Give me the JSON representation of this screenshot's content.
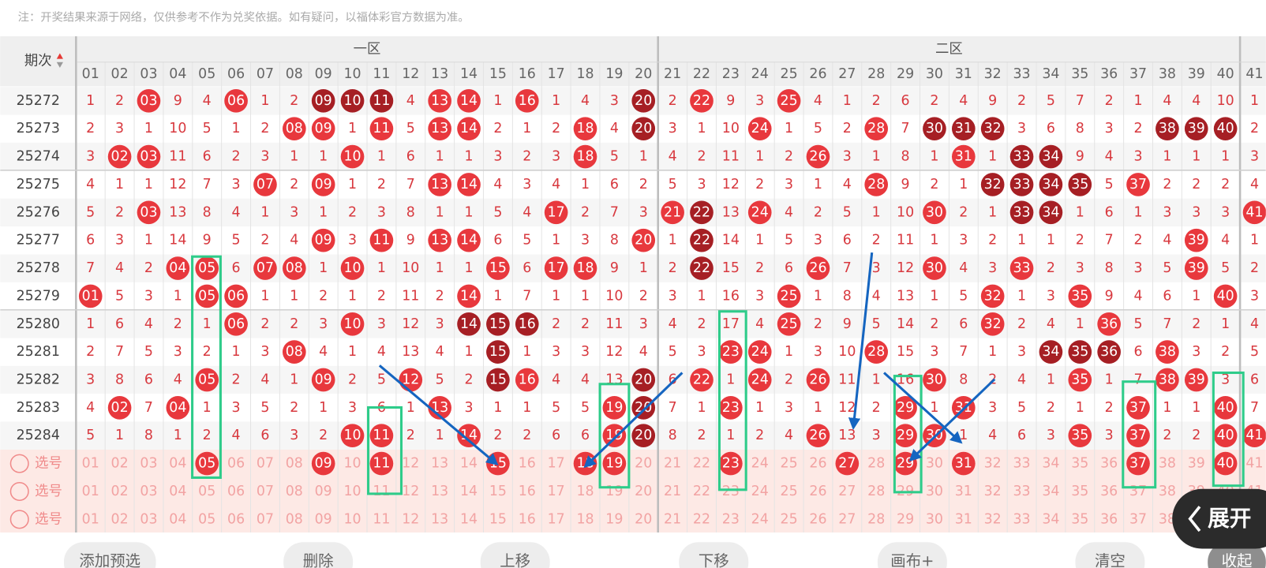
{
  "notice": "注：开奖结果来源于网络，仅供参考不作为兑奖依据。如有疑问，以福体彩官方数据为准。",
  "header": {
    "period": "期次",
    "zones": [
      "一区",
      "二区"
    ]
  },
  "columns": [
    "01",
    "02",
    "03",
    "04",
    "05",
    "06",
    "07",
    "08",
    "09",
    "10",
    "11",
    "12",
    "13",
    "14",
    "15",
    "16",
    "17",
    "18",
    "19",
    "20",
    "21",
    "22",
    "23",
    "24",
    "25",
    "26",
    "27",
    "28",
    "29",
    "30",
    "31",
    "32",
    "33",
    "34",
    "35",
    "36",
    "37",
    "38",
    "39",
    "40",
    "41"
  ],
  "rows": [
    {
      "period": "25272",
      "cells": [
        "1",
        "2",
        "03",
        "9",
        "4",
        "06",
        "1",
        "2",
        "09",
        "10",
        "11",
        "4",
        "13",
        "14",
        "1",
        "16",
        "1",
        "4",
        "3",
        "20",
        "2",
        "22",
        "9",
        "3",
        "25",
        "4",
        "1",
        "2",
        "6",
        "2",
        "4",
        "9",
        "2",
        "5",
        "7",
        "2",
        "1",
        "4",
        "4",
        "10",
        "1"
      ],
      "red": [
        "03",
        "06",
        "13",
        "14",
        "16",
        "22",
        "25"
      ],
      "dark": [
        "09",
        "10",
        "11",
        "20"
      ]
    },
    {
      "period": "25273",
      "cells": [
        "2",
        "3",
        "1",
        "10",
        "5",
        "1",
        "2",
        "08",
        "09",
        "1",
        "11",
        "5",
        "13",
        "14",
        "2",
        "1",
        "2",
        "18",
        "4",
        "20",
        "3",
        "1",
        "10",
        "24",
        "1",
        "5",
        "2",
        "28",
        "7",
        "30",
        "31",
        "32",
        "3",
        "6",
        "8",
        "3",
        "2",
        "38",
        "39",
        "40",
        "2"
      ],
      "red": [
        "08",
        "09",
        "11",
        "13",
        "14",
        "18",
        "24",
        "28"
      ],
      "dark": [
        "20",
        "30",
        "31",
        "32",
        "38",
        "39",
        "40"
      ]
    },
    {
      "period": "25274",
      "cells": [
        "3",
        "02",
        "03",
        "11",
        "6",
        "2",
        "3",
        "1",
        "1",
        "10",
        "1",
        "6",
        "1",
        "1",
        "3",
        "2",
        "3",
        "18",
        "5",
        "1",
        "4",
        "2",
        "11",
        "1",
        "2",
        "26",
        "3",
        "1",
        "8",
        "1",
        "31",
        "1",
        "33",
        "34",
        "9",
        "4",
        "3",
        "1",
        "1",
        "1",
        "3"
      ],
      "red": [
        "02",
        "03",
        "10",
        "18",
        "26",
        "31"
      ],
      "dark": [
        "33",
        "34"
      ]
    },
    {
      "period": "25275",
      "cells": [
        "4",
        "1",
        "1",
        "12",
        "7",
        "3",
        "07",
        "2",
        "09",
        "1",
        "2",
        "7",
        "13",
        "14",
        "4",
        "3",
        "4",
        "1",
        "6",
        "2",
        "5",
        "3",
        "12",
        "2",
        "3",
        "1",
        "4",
        "28",
        "9",
        "2",
        "1",
        "32",
        "33",
        "34",
        "35",
        "5",
        "37",
        "2",
        "2",
        "2",
        "4"
      ],
      "red": [
        "07",
        "09",
        "13",
        "14",
        "28",
        "37"
      ],
      "dark": [
        "32",
        "33",
        "34",
        "35"
      ]
    },
    {
      "period": "25276",
      "cells": [
        "5",
        "2",
        "03",
        "13",
        "8",
        "4",
        "1",
        "3",
        "1",
        "2",
        "3",
        "8",
        "1",
        "1",
        "5",
        "4",
        "17",
        "2",
        "7",
        "3",
        "21",
        "22",
        "13",
        "24",
        "4",
        "2",
        "5",
        "1",
        "10",
        "30",
        "2",
        "1",
        "33",
        "34",
        "1",
        "6",
        "1",
        "3",
        "3",
        "3",
        "41"
      ],
      "red": [
        "03",
        "17",
        "21",
        "24",
        "30",
        "41"
      ],
      "dark": [
        "22",
        "33",
        "34"
      ]
    },
    {
      "period": "25277",
      "cells": [
        "6",
        "3",
        "1",
        "14",
        "9",
        "5",
        "2",
        "4",
        "09",
        "3",
        "11",
        "9",
        "13",
        "14",
        "6",
        "5",
        "1",
        "3",
        "8",
        "20",
        "1",
        "22",
        "14",
        "1",
        "5",
        "3",
        "6",
        "2",
        "11",
        "1",
        "3",
        "2",
        "1",
        "1",
        "2",
        "7",
        "2",
        "4",
        "39",
        "4",
        "1"
      ],
      "red": [
        "09",
        "11",
        "13",
        "14",
        "20",
        "39"
      ],
      "dark": [
        "22"
      ]
    },
    {
      "period": "25278",
      "cells": [
        "7",
        "4",
        "2",
        "04",
        "05",
        "6",
        "07",
        "08",
        "1",
        "10",
        "1",
        "10",
        "1",
        "1",
        "15",
        "6",
        "17",
        "18",
        "9",
        "1",
        "2",
        "22",
        "15",
        "2",
        "6",
        "26",
        "7",
        "3",
        "12",
        "30",
        "4",
        "3",
        "33",
        "2",
        "3",
        "8",
        "3",
        "5",
        "39",
        "5",
        "2"
      ],
      "red": [
        "04",
        "05",
        "07",
        "08",
        "10",
        "15",
        "17",
        "18",
        "26",
        "30",
        "33",
        "39"
      ],
      "dark": [
        "22"
      ]
    },
    {
      "period": "25279",
      "cells": [
        "01",
        "5",
        "3",
        "1",
        "05",
        "06",
        "1",
        "1",
        "2",
        "1",
        "2",
        "11",
        "2",
        "14",
        "1",
        "7",
        "1",
        "1",
        "10",
        "2",
        "3",
        "1",
        "16",
        "3",
        "25",
        "1",
        "8",
        "4",
        "13",
        "1",
        "5",
        "32",
        "1",
        "3",
        "35",
        "9",
        "4",
        "6",
        "1",
        "40",
        "3"
      ],
      "red": [
        "01",
        "05",
        "06",
        "14",
        "25",
        "32",
        "35",
        "40"
      ],
      "dark": []
    },
    {
      "period": "25280",
      "cells": [
        "1",
        "6",
        "4",
        "2",
        "1",
        "06",
        "2",
        "2",
        "3",
        "10",
        "3",
        "12",
        "3",
        "14",
        "15",
        "16",
        "2",
        "2",
        "11",
        "3",
        "4",
        "2",
        "17",
        "4",
        "25",
        "2",
        "9",
        "5",
        "14",
        "2",
        "6",
        "32",
        "2",
        "4",
        "1",
        "36",
        "5",
        "7",
        "2",
        "1",
        "4"
      ],
      "red": [
        "06",
        "10",
        "25",
        "32",
        "36"
      ],
      "dark": [
        "14",
        "15",
        "16"
      ]
    },
    {
      "period": "25281",
      "cells": [
        "2",
        "7",
        "5",
        "3",
        "2",
        "1",
        "3",
        "08",
        "4",
        "1",
        "4",
        "13",
        "4",
        "1",
        "15",
        "1",
        "3",
        "3",
        "12",
        "4",
        "5",
        "3",
        "23",
        "24",
        "1",
        "3",
        "10",
        "28",
        "15",
        "3",
        "7",
        "1",
        "3",
        "34",
        "35",
        "36",
        "6",
        "38",
        "3",
        "2",
        "5"
      ],
      "red": [
        "08",
        "23",
        "24",
        "28",
        "38"
      ],
      "dark": [
        "15",
        "34",
        "35",
        "36"
      ]
    },
    {
      "period": "25282",
      "cells": [
        "3",
        "8",
        "6",
        "4",
        "05",
        "2",
        "4",
        "1",
        "09",
        "2",
        "5",
        "12",
        "5",
        "2",
        "15",
        "16",
        "4",
        "4",
        "13",
        "20",
        "6",
        "22",
        "1",
        "24",
        "2",
        "26",
        "11",
        "1",
        "16",
        "30",
        "8",
        "2",
        "4",
        "1",
        "35",
        "1",
        "7",
        "38",
        "39",
        "3",
        "6"
      ],
      "red": [
        "05",
        "09",
        "12",
        "16",
        "22",
        "24",
        "26",
        "30",
        "35",
        "38",
        "39"
      ],
      "dark": [
        "15",
        "20"
      ]
    },
    {
      "period": "25283",
      "cells": [
        "4",
        "02",
        "7",
        "04",
        "1",
        "3",
        "5",
        "2",
        "1",
        "3",
        "6",
        "1",
        "13",
        "3",
        "1",
        "1",
        "5",
        "5",
        "19",
        "20",
        "7",
        "1",
        "23",
        "1",
        "3",
        "1",
        "12",
        "2",
        "29",
        "1",
        "31",
        "3",
        "5",
        "2",
        "1",
        "2",
        "37",
        "1",
        "1",
        "40",
        "7"
      ],
      "red": [
        "02",
        "04",
        "13",
        "19",
        "23",
        "29",
        "31",
        "37",
        "40"
      ],
      "dark": [
        "20"
      ]
    },
    {
      "period": "25284",
      "cells": [
        "5",
        "1",
        "8",
        "1",
        "2",
        "4",
        "6",
        "3",
        "2",
        "10",
        "11",
        "2",
        "1",
        "14",
        "2",
        "2",
        "6",
        "6",
        "19",
        "20",
        "8",
        "2",
        "1",
        "2",
        "4",
        "26",
        "13",
        "3",
        "29",
        "30",
        "1",
        "4",
        "6",
        "3",
        "35",
        "3",
        "37",
        "2",
        "2",
        "40",
        "41"
      ],
      "red": [
        "10",
        "11",
        "14",
        "19",
        "26",
        "29",
        "30",
        "35",
        "37",
        "40",
        "41"
      ],
      "dark": [
        "20"
      ]
    }
  ],
  "picks": [
    {
      "label": "选号",
      "selected": [
        "05",
        "09",
        "11",
        "15",
        "18",
        "19",
        "23",
        "27",
        "29",
        "31",
        "37",
        "40"
      ]
    },
    {
      "label": "选号",
      "selected": []
    },
    {
      "label": "选号",
      "selected": []
    }
  ],
  "buttons": [
    "添加预选",
    "删除",
    "上移",
    "下移",
    "画布+",
    "清空",
    "收起"
  ],
  "expand": "展开"
}
